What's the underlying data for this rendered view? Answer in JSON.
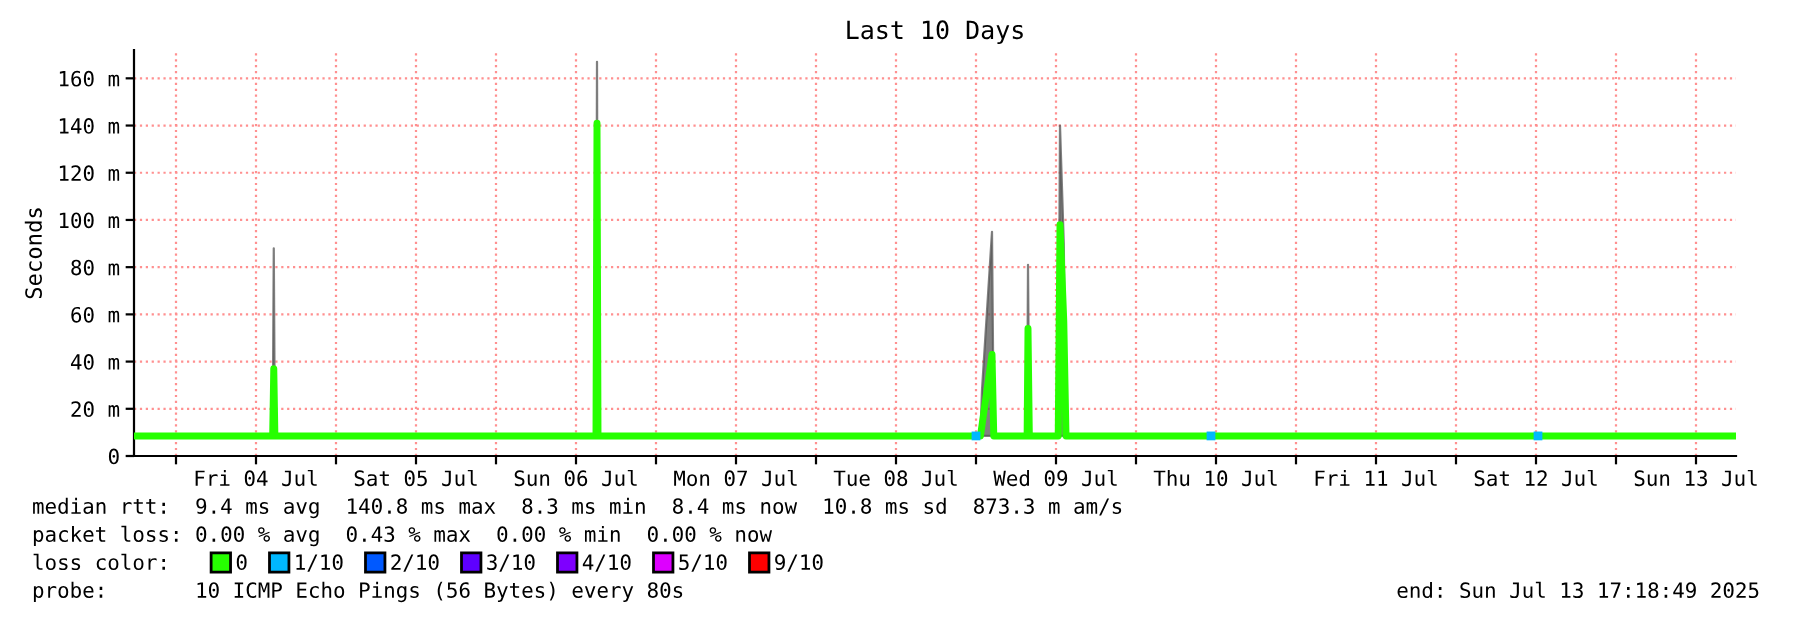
{
  "chart_data": {
    "type": "line",
    "title": "Last 10 Days",
    "ylabel": "Seconds",
    "xlim": [
      "2025-07-03T17:42",
      "2025-07-13T18:00"
    ],
    "ylim": [
      0,
      172
    ],
    "xticks": [
      {
        "value": "2025-07-04T00:00",
        "label": null
      },
      {
        "value": "2025-07-04T12:00",
        "label": "Fri 04 Jul"
      },
      {
        "value": "2025-07-05T00:00",
        "label": null
      },
      {
        "value": "2025-07-05T12:00",
        "label": "Sat 05 Jul"
      },
      {
        "value": "2025-07-06T00:00",
        "label": null
      },
      {
        "value": "2025-07-06T12:00",
        "label": "Sun 06 Jul"
      },
      {
        "value": "2025-07-07T00:00",
        "label": null
      },
      {
        "value": "2025-07-07T12:00",
        "label": "Mon 07 Jul"
      },
      {
        "value": "2025-07-08T00:00",
        "label": null
      },
      {
        "value": "2025-07-08T12:00",
        "label": "Tue 08 Jul"
      },
      {
        "value": "2025-07-09T00:00",
        "label": null
      },
      {
        "value": "2025-07-09T12:00",
        "label": "Wed 09 Jul"
      },
      {
        "value": "2025-07-10T00:00",
        "label": null
      },
      {
        "value": "2025-07-10T12:00",
        "label": "Thu 10 Jul"
      },
      {
        "value": "2025-07-11T00:00",
        "label": null
      },
      {
        "value": "2025-07-11T12:00",
        "label": "Fri 11 Jul"
      },
      {
        "value": "2025-07-12T00:00",
        "label": null
      },
      {
        "value": "2025-07-12T12:00",
        "label": "Sat 12 Jul"
      },
      {
        "value": "2025-07-13T00:00",
        "label": null
      },
      {
        "value": "2025-07-13T12:00",
        "label": "Sun 13 Jul"
      }
    ],
    "yticks": [
      0,
      {
        "value": 20,
        "label": "20 m"
      },
      {
        "value": 40,
        "label": "40 m"
      },
      {
        "value": 60,
        "label": "60 m"
      },
      {
        "value": 80,
        "label": "80 m"
      },
      {
        "value": 100,
        "label": "100 m"
      },
      {
        "value": 120,
        "label": "120 m"
      },
      {
        "value": 140,
        "label": "140 m"
      },
      {
        "value": 160,
        "label": "160 m"
      }
    ],
    "grid": true,
    "legend": "bottom",
    "legend_title": "loss color:",
    "series": [
      {
        "name": "0",
        "color": "#26ff00",
        "x": [
          "2025-07-03T17:42",
          "2025-07-04T14:30",
          "2025-07-04T14:40",
          "2025-07-04T14:50",
          "2025-07-06T15:00",
          "2025-07-06T15:09",
          "2025-07-06T15:18",
          "2025-07-09T00:40",
          "2025-07-09T00:54",
          "2025-07-09T02:24",
          "2025-07-09T02:40",
          "2025-07-09T07:40",
          "2025-07-09T07:48",
          "2025-07-09T08:00",
          "2025-07-09T12:20",
          "2025-07-09T12:36",
          "2025-07-09T13:10",
          "2025-07-09T13:30",
          "2025-07-13T18:00"
        ],
        "values": [
          8.5,
          8.5,
          37,
          8.5,
          8.5,
          141,
          8.5,
          8.5,
          13,
          43,
          8.5,
          8.5,
          54,
          8.5,
          8.5,
          98,
          57,
          8.5,
          8.5
        ],
        "lower": [
          8.5,
          8.5,
          8.5,
          8.5,
          8.5,
          8.5,
          8.5,
          8.5,
          8.5,
          8.5,
          8.5,
          8.5,
          8.5,
          8.5,
          8.5,
          8.5,
          8.5,
          8.5,
          8.5
        ],
        "upper": [
          8.5,
          8.5,
          88,
          8.5,
          8.5,
          167,
          8.5,
          8.5,
          28,
          95,
          8.5,
          8.5,
          81,
          8.5,
          8.5,
          140,
          90,
          8.5,
          8.5
        ]
      },
      {
        "name": "1/10",
        "color": "#00b8ff",
        "type": "scatter",
        "marker": "square",
        "x": [
          "2025-07-09T00:00",
          "2025-07-10T11:15",
          "2025-07-12T12:18"
        ],
        "values": [
          8.5,
          8.5,
          8.5
        ]
      },
      {
        "name": "2/10",
        "color": "#0059ff",
        "type": "scatter",
        "marker": "square"
      },
      {
        "name": "3/10",
        "color": "#5e00ff",
        "type": "scatter",
        "marker": "square"
      },
      {
        "name": "4/10",
        "color": "#7e00ff",
        "type": "scatter",
        "marker": "square"
      },
      {
        "name": "5/10",
        "color": "#dd00ff",
        "type": "scatter",
        "marker": "square"
      },
      {
        "name": "9/10",
        "color": "#ff0000",
        "type": "scatter",
        "marker": "square"
      }
    ],
    "annotations": [
      "median rtt:  9.4 ms avg  140.8 ms max  8.3 ms min  8.4 ms now  10.8 ms sd  873.3 m am/s",
      "packet loss: 0.00 % avg  0.43 % max  0.00 % min  0.00 % now",
      "probe:       10 ICMP Echo Pings (56 Bytes) every 80s",
      "end: Sun Jul 13 17:18:49 2025"
    ]
  }
}
